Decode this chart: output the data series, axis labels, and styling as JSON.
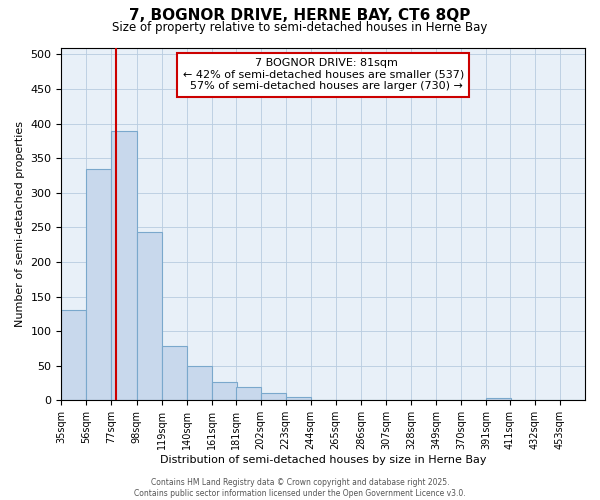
{
  "title": "7, BOGNOR DRIVE, HERNE BAY, CT6 8QP",
  "subtitle": "Size of property relative to semi-detached houses in Herne Bay",
  "xlabel": "Distribution of semi-detached houses by size in Herne Bay",
  "ylabel": "Number of semi-detached properties",
  "property_size": 81,
  "property_label": "7 BOGNOR DRIVE: 81sqm",
  "pct_smaller": 42,
  "n_smaller": 537,
  "pct_larger": 57,
  "n_larger": 730,
  "bin_edges": [
    35,
    56,
    77,
    98,
    119,
    140,
    161,
    181,
    202,
    223,
    244,
    265,
    286,
    307,
    328,
    349,
    370,
    391,
    411,
    432,
    453
  ],
  "bar_heights": [
    130,
    335,
    390,
    243,
    79,
    50,
    26,
    20,
    10,
    5,
    0,
    0,
    0,
    0,
    0,
    0,
    0,
    3,
    0,
    0,
    0
  ],
  "bar_color": "#c8d8ec",
  "bar_edge_color": "#7aa8cc",
  "vline_color": "#cc0000",
  "annotation_box_edge_color": "#cc0000",
  "grid_color": "#b8cce0",
  "background_color": "#e8f0f8",
  "footer_text": "Contains HM Land Registry data © Crown copyright and database right 2025.\nContains public sector information licensed under the Open Government Licence v3.0.",
  "tick_labels": [
    "35sqm",
    "56sqm",
    "77sqm",
    "98sqm",
    "119sqm",
    "140sqm",
    "161sqm",
    "181sqm",
    "202sqm",
    "223sqm",
    "244sqm",
    "265sqm",
    "286sqm",
    "307sqm",
    "328sqm",
    "349sqm",
    "370sqm",
    "391sqm",
    "411sqm",
    "432sqm",
    "453sqm"
  ],
  "ylim": [
    0,
    510
  ],
  "yticks": [
    0,
    50,
    100,
    150,
    200,
    250,
    300,
    350,
    400,
    450,
    500
  ]
}
